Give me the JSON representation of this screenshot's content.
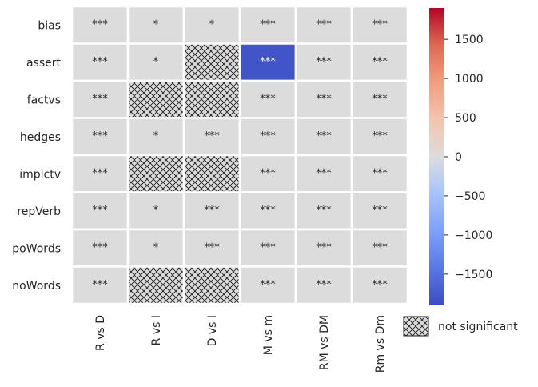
{
  "chart_data": {
    "type": "heatmap",
    "rows": [
      "bias",
      "assert",
      "factvs",
      "hedges",
      "implctv",
      "repVerb",
      "poWords",
      "noWords"
    ],
    "columns": [
      "R vs D",
      "R vs I",
      "D vs I",
      "M vs m",
      "RM vs DM",
      "Rm vs Dm"
    ],
    "values": [
      [
        0,
        0,
        0,
        0,
        0,
        0
      ],
      [
        0,
        0,
        null,
        -1800,
        0,
        0
      ],
      [
        0,
        null,
        null,
        0,
        0,
        0
      ],
      [
        0,
        0,
        0,
        0,
        0,
        0
      ],
      [
        0,
        null,
        null,
        0,
        0,
        0
      ],
      [
        0,
        0,
        0,
        0,
        0,
        0
      ],
      [
        0,
        0,
        0,
        0,
        0,
        0
      ],
      [
        0,
        null,
        null,
        0,
        0,
        0
      ]
    ],
    "annotations": [
      [
        "***",
        "*",
        "*",
        "***",
        "***",
        "***"
      ],
      [
        "***",
        "*",
        "",
        "***",
        "***",
        "***"
      ],
      [
        "***",
        "",
        "",
        "***",
        "***",
        "***"
      ],
      [
        "***",
        "*",
        "***",
        "***",
        "***",
        "***"
      ],
      [
        "***",
        "",
        "",
        "***",
        "***",
        "***"
      ],
      [
        "***",
        "*",
        "***",
        "***",
        "***",
        "***"
      ],
      [
        "***",
        "*",
        "***",
        "***",
        "***",
        "***"
      ],
      [
        "***",
        "",
        "",
        "***",
        "***",
        "***"
      ]
    ],
    "colorbar": {
      "colormap": "coolwarm",
      "range": [
        -1900,
        1900
      ],
      "ticks": [
        1500,
        1000,
        500,
        0,
        -500,
        -1000,
        -1500
      ],
      "tick_labels": [
        "1500",
        "1000",
        "500",
        "0",
        "−500",
        "−1000",
        "−1500"
      ]
    },
    "legend": {
      "label": "not significant",
      "placement": "bottom-right"
    }
  }
}
